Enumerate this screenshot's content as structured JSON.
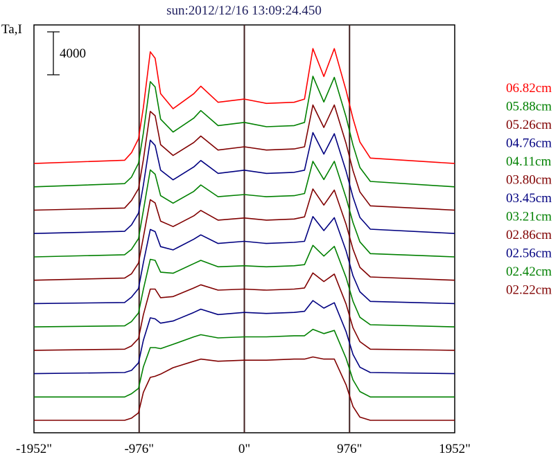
{
  "chart_data": {
    "type": "line",
    "title": "sun:2012/12/16 13:09:24.450",
    "ylabel": "Ta,I",
    "xlabel": "",
    "x_tick_labels": [
      "-1952\"",
      "-976\"",
      "0\"",
      "976\"",
      "1952\""
    ],
    "x_ticks": [
      -1952,
      -976,
      0,
      976,
      1952
    ],
    "xlim": [
      -1952,
      1952
    ],
    "ylim": [
      -1160,
      36830
    ],
    "vertical_markers": [
      -976,
      0,
      976
    ],
    "scale_bar": {
      "label": "4000",
      "value": 4000
    },
    "series_offset": 2175,
    "legend_placement": "right",
    "x": [
      -1952,
      -1111,
      -1047,
      -982,
      -937,
      -873,
      -828,
      -777,
      -661,
      -469,
      -404,
      -244,
      0,
      205,
      462,
      558,
      636,
      738,
      835,
      944,
      1008,
      1072,
      1169,
      1952
    ],
    "series": [
      {
        "name": "06.82cm",
        "color": "#ff0000",
        "values": [
          0,
          300,
          1000,
          2300,
          5200,
          10400,
          9800,
          6500,
          5100,
          6500,
          7200,
          5700,
          6000,
          5600,
          5700,
          6000,
          10700,
          8100,
          10700,
          6800,
          4200,
          2000,
          500,
          0
        ]
      },
      {
        "name": "05.88cm",
        "color": "#008000",
        "values": [
          0,
          300,
          900,
          2200,
          5000,
          9800,
          9300,
          6300,
          5100,
          6400,
          7100,
          5700,
          6000,
          5600,
          5700,
          6000,
          10300,
          7900,
          10200,
          6500,
          3900,
          1800,
          500,
          0
        ]
      },
      {
        "name": "05.26cm",
        "color": "#800000",
        "values": [
          0,
          200,
          900,
          2000,
          4700,
          9200,
          8800,
          6100,
          5100,
          6300,
          6900,
          5600,
          5900,
          5600,
          5700,
          5900,
          9800,
          7700,
          9800,
          6200,
          3700,
          1700,
          400,
          0
        ]
      },
      {
        "name": "04.76cm",
        "color": "#000080",
        "values": [
          0,
          200,
          800,
          1900,
          4500,
          8700,
          8200,
          5900,
          5000,
          6200,
          6800,
          5600,
          5900,
          5600,
          5700,
          5900,
          9400,
          7400,
          9300,
          5800,
          3400,
          1500,
          400,
          0
        ]
      },
      {
        "name": "04.11cm",
        "color": "#008000",
        "values": [
          0,
          200,
          700,
          1700,
          4300,
          8100,
          7700,
          5700,
          5000,
          6100,
          6700,
          5600,
          5800,
          5600,
          5700,
          5900,
          8900,
          7200,
          8900,
          5500,
          3200,
          1400,
          300,
          0
        ]
      },
      {
        "name": "03.80cm",
        "color": "#800000",
        "values": [
          0,
          200,
          600,
          1600,
          4000,
          7500,
          7200,
          5500,
          5000,
          6000,
          6500,
          5600,
          5800,
          5600,
          5700,
          5900,
          8500,
          7000,
          8400,
          5200,
          2900,
          1200,
          300,
          0
        ]
      },
      {
        "name": "03.45cm",
        "color": "#000080",
        "values": [
          0,
          100,
          600,
          1400,
          3800,
          6900,
          6700,
          5300,
          5000,
          6000,
          6400,
          5600,
          5800,
          5600,
          5700,
          5800,
          8100,
          6800,
          8000,
          4900,
          2600,
          1100,
          200,
          0
        ]
      },
      {
        "name": "03.21cm",
        "color": "#008000",
        "values": [
          0,
          100,
          500,
          1300,
          3500,
          6300,
          6200,
          5100,
          5000,
          5900,
          6200,
          5600,
          5700,
          5600,
          5700,
          5800,
          7600,
          6600,
          7500,
          4600,
          2400,
          900,
          200,
          0
        ]
      },
      {
        "name": "02.86cm",
        "color": "#800000",
        "values": [
          0,
          100,
          400,
          1100,
          3300,
          5700,
          5700,
          4900,
          5000,
          5800,
          6100,
          5600,
          5700,
          5600,
          5700,
          5800,
          7200,
          6400,
          7100,
          4300,
          2100,
          800,
          100,
          0
        ]
      },
      {
        "name": "02.56cm",
        "color": "#000080",
        "values": [
          0,
          100,
          300,
          1000,
          3100,
          5200,
          5100,
          4700,
          4900,
          5700,
          6000,
          5500,
          5700,
          5600,
          5700,
          5800,
          6800,
          6100,
          6600,
          3900,
          1800,
          600,
          100,
          0
        ]
      },
      {
        "name": "02.42cm",
        "color": "#008000",
        "values": [
          0,
          0,
          300,
          800,
          2800,
          4600,
          4600,
          4500,
          4900,
          5600,
          5800,
          5500,
          5600,
          5600,
          5700,
          5700,
          6300,
          5900,
          6200,
          3600,
          1600,
          500,
          0,
          0
        ]
      },
      {
        "name": "02.22cm",
        "color": "#800000",
        "values": [
          0,
          0,
          200,
          700,
          2600,
          4000,
          4100,
          4300,
          4900,
          5500,
          5700,
          5500,
          5600,
          5600,
          5700,
          5700,
          5900,
          5700,
          5700,
          3300,
          1300,
          300,
          0,
          0
        ]
      }
    ]
  }
}
